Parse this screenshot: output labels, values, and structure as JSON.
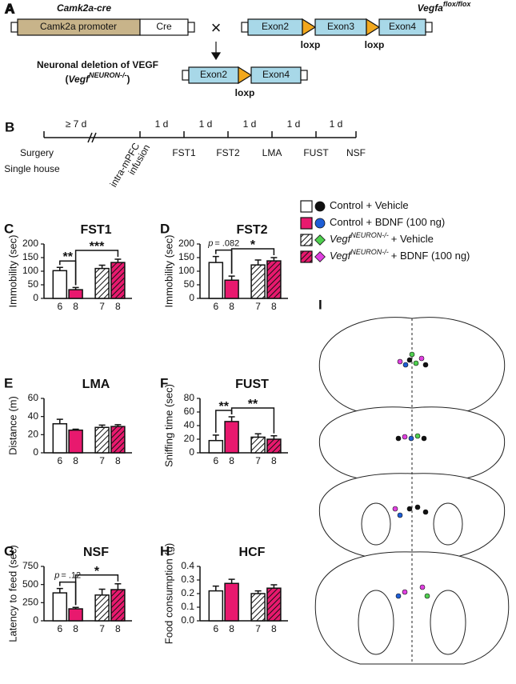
{
  "panel_a": {
    "label": "A",
    "driver": "Camk2a-cre",
    "promoter": "Camk2a promoter",
    "cre": "Cre",
    "cross": "×",
    "floxed_name": "Vegfa",
    "floxed_sup": "flox/flox",
    "exons": [
      "Exon2",
      "Exon3",
      "Exon4"
    ],
    "loxp": "loxp",
    "deletion_title": "Neuronal deletion of VEGF",
    "deletion_open": "(",
    "deletion_name": "Vegf",
    "deletion_sup": "NEURON-/-",
    "deletion_close": ")"
  },
  "panel_b": {
    "label": "B",
    "intervals": [
      "≥ 7 d",
      "1 d",
      "1 d",
      "1 d",
      "1 d",
      "1 d"
    ],
    "events": [
      "Surgery",
      "Single house"
    ],
    "infusion": [
      "intra-mPFC",
      "infusion"
    ],
    "tests": [
      "FST1",
      "FST2",
      "LMA",
      "FUST",
      "NSF"
    ]
  },
  "legend": [
    {
      "text": "Control + Vehicle",
      "fill": "#ffffff",
      "hatched": false,
      "dot": "#111111"
    },
    {
      "text": "Control + BDNF (100 ng)",
      "fill": "#e8196e",
      "hatched": false,
      "dot": "#1f5fd6"
    },
    {
      "italic": "Vegf",
      "sup": "NEURON-/-",
      "text": "+ Vehicle",
      "fill": "#ffffff",
      "hatched": true,
      "dot": "#4fd04f"
    },
    {
      "italic": "Vegf",
      "sup": "NEURON-/-",
      "text": "+ BDNF (100 ng)",
      "fill": "#e8196e",
      "hatched": true,
      "dot": "#e040e0"
    }
  ],
  "panel_i": {
    "label": "I"
  },
  "chart_data": [
    {
      "type": "bar",
      "label": "C",
      "title": "FST1",
      "ylabel": "Immobility (sec)",
      "categories": [
        "6",
        "8",
        "7",
        "8"
      ],
      "values": [
        102,
        32,
        110,
        132
      ],
      "errors": [
        12,
        8,
        12,
        12
      ],
      "colors": [
        "#ffffff",
        "#e8196e",
        "#ffffff",
        "#e8196e"
      ],
      "hatched": [
        false,
        false,
        true,
        true
      ],
      "ylim": [
        0,
        200
      ],
      "yticks": [
        0,
        50,
        100,
        150,
        200
      ],
      "annotations": [
        {
          "text": "**",
          "bars": [
            0,
            1
          ]
        },
        {
          "text": "***",
          "bars": [
            1,
            3
          ]
        }
      ]
    },
    {
      "type": "bar",
      "label": "D",
      "title": "FST2",
      "ylabel": "Immobility (sec)",
      "categories": [
        "6",
        "8",
        "7",
        "8"
      ],
      "values": [
        132,
        67,
        123,
        138
      ],
      "errors": [
        22,
        15,
        18,
        12
      ],
      "colors": [
        "#ffffff",
        "#e8196e",
        "#ffffff",
        "#e8196e"
      ],
      "hatched": [
        false,
        false,
        true,
        true
      ],
      "ylim": [
        0,
        200
      ],
      "yticks": [
        0,
        50,
        100,
        150,
        200
      ],
      "annotations": [
        {
          "italic": "p",
          "text": "= .082",
          "bars": [
            0,
            1
          ]
        },
        {
          "text": "*",
          "bars": [
            1,
            3
          ]
        }
      ]
    },
    {
      "type": "bar",
      "label": "E",
      "title": "LMA",
      "ylabel": "Distance (m)",
      "categories": [
        "6",
        "8",
        "7",
        "8"
      ],
      "values": [
        32,
        25,
        28,
        29
      ],
      "errors": [
        5,
        1,
        2.5,
        2
      ],
      "colors": [
        "#ffffff",
        "#e8196e",
        "#ffffff",
        "#e8196e"
      ],
      "hatched": [
        false,
        false,
        true,
        true
      ],
      "ylim": [
        0,
        60
      ],
      "yticks": [
        0,
        20,
        40,
        60
      ],
      "annotations": []
    },
    {
      "type": "bar",
      "label": "F",
      "title": "FUST",
      "ylabel": "Sniffing time (sec)",
      "categories": [
        "6",
        "8",
        "7",
        "8"
      ],
      "values": [
        18,
        46,
        23,
        20
      ],
      "errors": [
        8,
        7,
        5,
        5
      ],
      "colors": [
        "#ffffff",
        "#e8196e",
        "#ffffff",
        "#e8196e"
      ],
      "hatched": [
        false,
        false,
        true,
        true
      ],
      "ylim": [
        0,
        80
      ],
      "yticks": [
        0,
        20,
        40,
        60,
        80
      ],
      "annotations": [
        {
          "text": "**",
          "bars": [
            0,
            1
          ]
        },
        {
          "text": "**",
          "bars": [
            1,
            3
          ]
        }
      ]
    },
    {
      "type": "bar",
      "label": "G",
      "title": "NSF",
      "ylabel": "Latency to feed (sec)",
      "categories": [
        "6",
        "8",
        "7",
        "8"
      ],
      "values": [
        385,
        165,
        355,
        430
      ],
      "errors": [
        60,
        20,
        80,
        80
      ],
      "colors": [
        "#ffffff",
        "#e8196e",
        "#ffffff",
        "#e8196e"
      ],
      "hatched": [
        false,
        false,
        true,
        true
      ],
      "ylim": [
        0,
        750
      ],
      "yticks": [
        0,
        250,
        500,
        750
      ],
      "annotations": [
        {
          "italic": "p",
          "text": "= .12",
          "bars": [
            0,
            1
          ]
        },
        {
          "text": "*",
          "bars": [
            1,
            3
          ]
        }
      ]
    },
    {
      "type": "bar",
      "label": "H",
      "title": "HCF",
      "ylabel": "Food consumption (g)",
      "categories": [
        "6",
        "8",
        "7",
        "8"
      ],
      "values": [
        0.22,
        0.275,
        0.2,
        0.24
      ],
      "errors": [
        0.035,
        0.03,
        0.02,
        0.025
      ],
      "colors": [
        "#ffffff",
        "#e8196e",
        "#ffffff",
        "#e8196e"
      ],
      "hatched": [
        false,
        false,
        true,
        true
      ],
      "ylim": [
        0,
        0.4
      ],
      "yticks": [
        {
          "value": 0,
          "label": "0.0"
        },
        0.1,
        0.2,
        0.3,
        0.4
      ],
      "annotations": []
    }
  ]
}
